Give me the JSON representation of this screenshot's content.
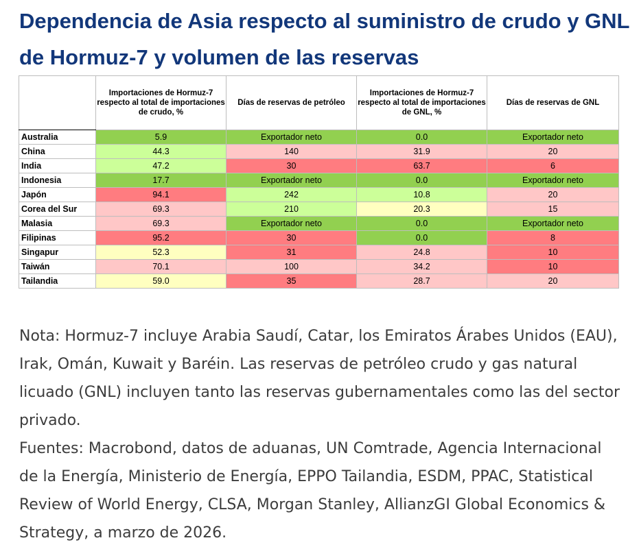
{
  "title": "Dependencia de Asia respecto al suministro de crudo y GNL de Hormuz-7 y volumen de las reservas",
  "colors": {
    "title": "#12377a",
    "green": "#92d050",
    "light_green": "#ccff99",
    "yellow": "#ffffc0",
    "pink": "#ffc7c7",
    "red": "#ff7c80"
  },
  "chart_data": {
    "type": "table",
    "columns": [
      "Importaciones de Hormuz-7 respecto al total de importaciones de crudo, %",
      "Días de reservas de petróleo",
      "Importaciones de Hormuz-7 respecto al total de importaciones de GNL, %",
      "Días de reservas de GNL"
    ],
    "rows": [
      {
        "country": "Australia",
        "values": [
          "5.9",
          "Exportador neto",
          "0.0",
          "Exportador neto"
        ],
        "colors": [
          "green",
          "green",
          "green",
          "green"
        ]
      },
      {
        "country": "China",
        "values": [
          "44.3",
          "140",
          "31.9",
          "20"
        ],
        "colors": [
          "light_green",
          "pink",
          "pink",
          "pink"
        ]
      },
      {
        "country": "India",
        "values": [
          "47.2",
          "30",
          "63.7",
          "6"
        ],
        "colors": [
          "light_green",
          "red",
          "red",
          "red"
        ]
      },
      {
        "country": "Indonesia",
        "values": [
          "17.7",
          "Exportador neto",
          "0.0",
          "Exportador neto"
        ],
        "colors": [
          "green",
          "green",
          "green",
          "green"
        ]
      },
      {
        "country": "Japón",
        "values": [
          "94.1",
          "242",
          "10.8",
          "20"
        ],
        "colors": [
          "red",
          "light_green",
          "light_green",
          "pink"
        ]
      },
      {
        "country": "Corea del Sur",
        "values": [
          "69.3",
          "210",
          "20.3",
          "15"
        ],
        "colors": [
          "pink",
          "light_green",
          "yellow",
          "pink"
        ]
      },
      {
        "country": "Malasia",
        "values": [
          "69.3",
          "Exportador neto",
          "0.0",
          "Exportador neto"
        ],
        "colors": [
          "pink",
          "green",
          "green",
          "green"
        ]
      },
      {
        "country": "Filipinas",
        "values": [
          "95.2",
          "30",
          "0.0",
          "8"
        ],
        "colors": [
          "red",
          "red",
          "green",
          "red"
        ]
      },
      {
        "country": "Singapur",
        "values": [
          "52.3",
          "31",
          "24.8",
          "10"
        ],
        "colors": [
          "yellow",
          "red",
          "pink",
          "red"
        ]
      },
      {
        "country": "Taiwán",
        "values": [
          "70.1",
          "100",
          "34.2",
          "10"
        ],
        "colors": [
          "pink",
          "pink",
          "pink",
          "red"
        ]
      },
      {
        "country": "Tailandia",
        "values": [
          "59.0",
          "35",
          "28.7",
          "20"
        ],
        "colors": [
          "yellow",
          "red",
          "pink",
          "pink"
        ]
      }
    ]
  },
  "note": "Nota: Hormuz-7 incluye Arabia Saudí, Catar, los Emiratos Árabes Unidos (EAU), Irak, Omán, Kuwait y Baréin. Las reservas de petróleo crudo y gas natural licuado (GNL) incluyen tanto las reservas gubernamentales como las del sector privado.",
  "sources": "Fuentes: Macrobond, datos de aduanas, UN Comtrade, Agencia Internacional de la Energía, Ministerio de Energía, EPPO Tailandia, ESDM, PPAC, Statistical Review of World Energy, CLSA, Morgan Stanley, AllianzGI Global Economics & Strategy, a marzo de 2026."
}
